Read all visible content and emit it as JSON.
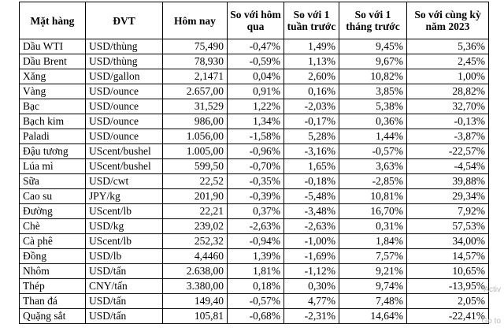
{
  "headers": [
    "Mặt hàng",
    "ĐVT",
    "Hôm nay",
    "So với hôm qua",
    "So với 1 tuần trước",
    "So với 1 tháng trước",
    "So với cùng kỳ năm 2023"
  ],
  "rows": [
    [
      "Dầu WTI",
      "USD/thùng",
      "75,490",
      "-0,47%",
      "1,49%",
      "9,45%",
      "5,36%"
    ],
    [
      "Dầu Brent",
      "USD/thùng",
      "78,930",
      "-0,59%",
      "1,13%",
      "9,67%",
      "2,45%"
    ],
    [
      "Xăng",
      "USD/gallon",
      "2,1471",
      "0,04%",
      "2,60%",
      "10,82%",
      "1,00%"
    ],
    [
      "Vàng",
      "USD/ounce",
      "2.657,00",
      "0,91%",
      "0,16%",
      "3,85%",
      "28,82%"
    ],
    [
      "Bạc",
      "USD/ounce",
      "31,529",
      "1,22%",
      "-2,03%",
      "5,38%",
      "32,70%"
    ],
    [
      "Bạch kim",
      "USD/ounce",
      "986,00",
      "1,34%",
      "-0,17%",
      "0,36%",
      "-0,13%"
    ],
    [
      "Paladi",
      "USD/ounce",
      "1.056,00",
      "-1,58%",
      "5,28%",
      "1,44%",
      "-3,87%"
    ],
    [
      "Đậu tương",
      "UScent/bushel",
      "1.005,00",
      "-0,96%",
      "-3,16%",
      "-0,57%",
      "-22,57%"
    ],
    [
      "Lúa mì",
      "UScent/bushel",
      "599,50",
      "-0,70%",
      "1,65%",
      "3,63%",
      "-4,54%"
    ],
    [
      "Sữa",
      "USD/cwt",
      "22,52",
      "-0,35%",
      "-0,18%",
      "-2,85%",
      "39,88%"
    ],
    [
      "Cao su",
      "JPY/kg",
      "201,90",
      "-0,39%",
      "-5,48%",
      "10,81%",
      "29,34%"
    ],
    [
      "Đường",
      "UScent/lb",
      "22,21",
      "0,37%",
      "-3,48%",
      "16,70%",
      "7,92%"
    ],
    [
      "Chè",
      "USD/kg",
      "239,02",
      "-2,63%",
      "-2,63%",
      "0,31%",
      "57,53%"
    ],
    [
      "Cà phê",
      "UScent/lb",
      "252,32",
      "-0,94%",
      "-1,00%",
      "1,84%",
      "34,00%"
    ],
    [
      "Đồng",
      "USD/lb",
      "4,4460",
      "1,39%",
      "-1,69%",
      "7,57%",
      "14,57%"
    ],
    [
      "Nhôm",
      "USD/tấn",
      "2.638,00",
      "1,81%",
      "-1,12%",
      "9,21%",
      "10,65%"
    ],
    [
      "Thép",
      "CNY/tấn",
      "3.380,00",
      "0,18%",
      "0,30%",
      "9,74%",
      "-13,95%"
    ],
    [
      "Than đá",
      "USD/tấn",
      "149,40",
      "-0,57%",
      "4,77%",
      "7,48%",
      "2,05%"
    ],
    [
      "Quặng sắt",
      "USD/tấn",
      "105,81",
      "-0,68%",
      "-2,31%",
      "14,64%",
      "-22,41%"
    ]
  ],
  "watermark": [
    "Activ",
    "Go to"
  ]
}
